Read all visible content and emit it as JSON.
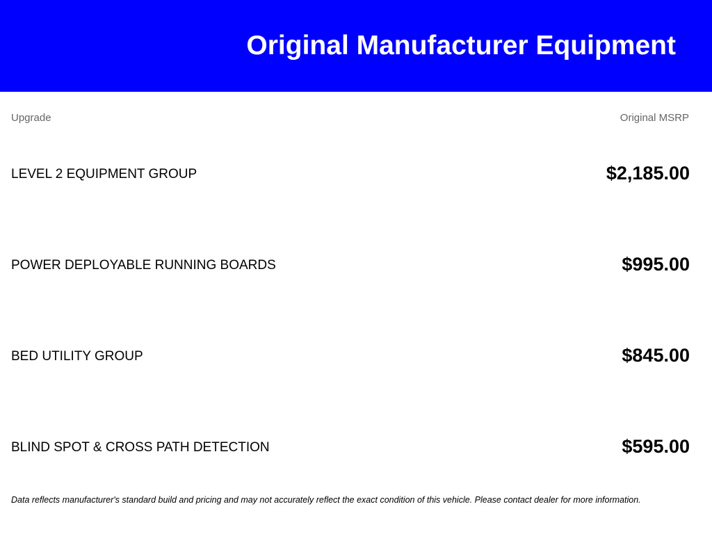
{
  "header": {
    "title": "Original Manufacturer Equipment",
    "background_color": "#0000ff"
  },
  "table": {
    "columns": {
      "upgrade": "Upgrade",
      "msrp": "Original MSRP"
    },
    "rows": [
      {
        "name": "LEVEL 2 EQUIPMENT GROUP",
        "price": "$2,185.00"
      },
      {
        "name": "POWER DEPLOYABLE RUNNING BOARDS",
        "price": "$995.00"
      },
      {
        "name": "BED UTILITY GROUP",
        "price": "$845.00"
      },
      {
        "name": "BLIND SPOT & CROSS PATH DETECTION",
        "price": "$595.00"
      }
    ]
  },
  "disclaimer": "Data reflects manufacturer's standard build and pricing and may not accurately reflect the exact condition of this vehicle. Please contact dealer for more information."
}
